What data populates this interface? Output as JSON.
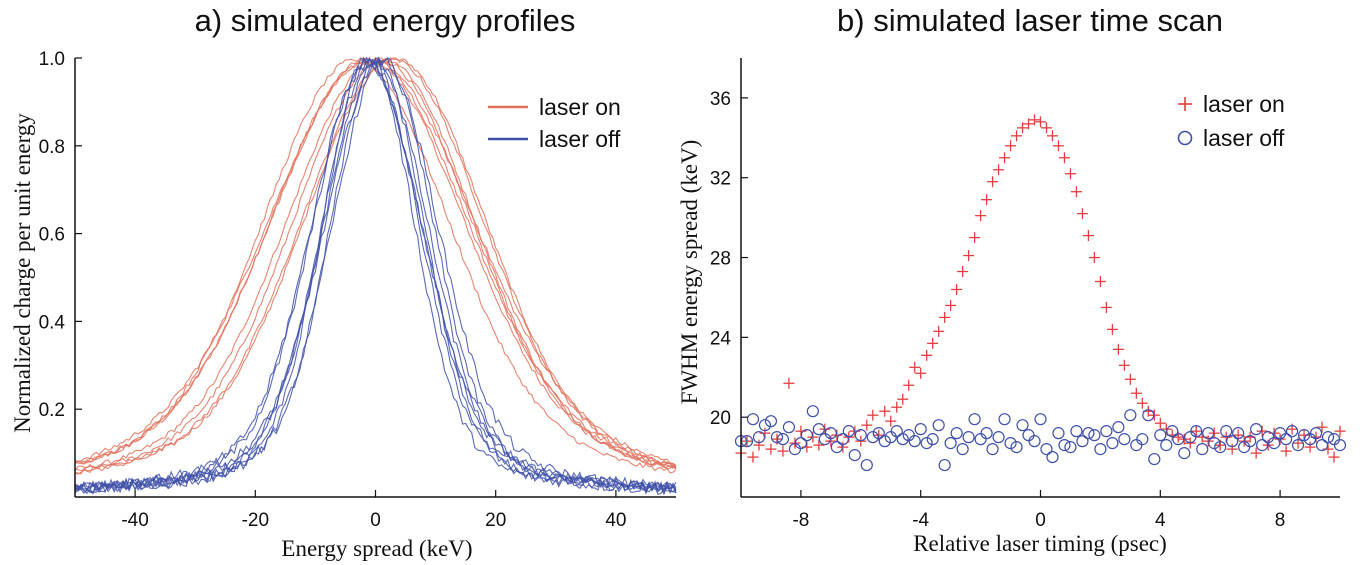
{
  "chart_data": [
    {
      "type": "line",
      "title": "a) simulated energy profiles",
      "xlabel": "Energy spread  (keV)",
      "ylabel": "Normalized charge per unit energy",
      "xlim": [
        -50,
        50
      ],
      "ylim": [
        0,
        1.0
      ],
      "xticks": [
        -40,
        -20,
        0,
        20,
        40
      ],
      "yticks": [
        0.2,
        0.4,
        0.6,
        0.8,
        1.0
      ],
      "ytick_labels": [
        "0.2",
        "0.4",
        "0.6",
        "0.8",
        "1.0"
      ],
      "legend_position": "top-right",
      "series": [
        {
          "name": "laser on",
          "color": "#e0705a",
          "model": "approximately gaussian core with heavy tails, 8 overlaid noisy simulation traces",
          "fwhm": 35,
          "x": [
            -50,
            -40,
            -30,
            -25,
            -20,
            -15,
            -10,
            -5,
            0,
            5,
            10,
            15,
            20,
            25,
            30,
            40,
            50
          ],
          "values": [
            0.04,
            0.07,
            0.12,
            0.17,
            0.29,
            0.52,
            0.79,
            0.97,
            1.0,
            0.97,
            0.79,
            0.52,
            0.29,
            0.17,
            0.12,
            0.07,
            0.04
          ]
        },
        {
          "name": "laser off",
          "color": "#4050a8",
          "model": "narrower peak with heavy tails, 8 overlaid noisy simulation traces",
          "fwhm": 19,
          "x": [
            -50,
            -40,
            -30,
            -20,
            -15,
            -10,
            -5,
            0,
            5,
            10,
            15,
            20,
            30,
            40,
            50
          ],
          "values": [
            0.02,
            0.04,
            0.06,
            0.11,
            0.2,
            0.42,
            0.8,
            1.0,
            0.8,
            0.42,
            0.2,
            0.12,
            0.07,
            0.04,
            0.02
          ]
        }
      ]
    },
    {
      "type": "scatter",
      "title": "b) simulated laser time scan",
      "xlabel": "Relative laser timing  (psec)",
      "ylabel": "FWHM energy spread (keV)",
      "xlim": [
        -10,
        10
      ],
      "ylim": [
        16,
        38
      ],
      "xticks": [
        -8,
        -4,
        0,
        4,
        8
      ],
      "yticks": [
        20,
        24,
        28,
        32,
        36
      ],
      "legend_position": "top-right",
      "series": [
        {
          "name": "laser on",
          "marker": "plus",
          "color": "#e04040",
          "x": [
            -10,
            -9.8,
            -9.6,
            -9.4,
            -9.2,
            -9,
            -8.8,
            -8.6,
            -8.4,
            -8.2,
            -8,
            -7.8,
            -7.6,
            -7.4,
            -7.2,
            -7,
            -6.8,
            -6.6,
            -6.4,
            -6.2,
            -6,
            -5.8,
            -5.6,
            -5.4,
            -5.2,
            -5,
            -4.8,
            -4.6,
            -4.4,
            -4.2,
            -4,
            -3.8,
            -3.6,
            -3.4,
            -3.2,
            -3,
            -2.8,
            -2.6,
            -2.4,
            -2.2,
            -2,
            -1.8,
            -1.6,
            -1.4,
            -1.2,
            -1,
            -0.8,
            -0.6,
            -0.4,
            -0.2,
            0,
            0.2,
            0.4,
            0.6,
            0.8,
            1,
            1.2,
            1.4,
            1.6,
            1.8,
            2,
            2.2,
            2.4,
            2.6,
            2.8,
            3,
            3.2,
            3.4,
            3.6,
            3.8,
            4,
            4.2,
            4.4,
            4.6,
            4.8,
            5,
            5.2,
            5.4,
            5.6,
            5.8,
            6,
            6.2,
            6.4,
            6.6,
            6.8,
            7,
            7.2,
            7.4,
            7.6,
            7.8,
            8,
            8.2,
            8.4,
            8.6,
            8.8,
            9,
            9.2,
            9.4,
            9.6,
            9.8,
            10
          ],
          "values": [
            18.2,
            18.8,
            18.0,
            18.6,
            19.2,
            18.4,
            18.9,
            18.3,
            21.7,
            18.7,
            19.3,
            18.5,
            19.0,
            18.6,
            19.4,
            18.8,
            19.1,
            18.5,
            19.0,
            19.3,
            18.8,
            19.6,
            20.1,
            19.1,
            20.3,
            19.8,
            20.5,
            20.9,
            21.6,
            22.5,
            22.2,
            23.1,
            23.7,
            24.3,
            25.0,
            25.6,
            26.4,
            27.3,
            28.1,
            29.0,
            30.1,
            30.9,
            31.8,
            32.4,
            33.0,
            33.6,
            34.1,
            34.5,
            34.7,
            34.9,
            34.8,
            34.5,
            34.1,
            33.6,
            33.0,
            32.2,
            31.3,
            30.2,
            29.1,
            28.0,
            26.8,
            25.5,
            24.4,
            23.4,
            22.6,
            21.9,
            21.2,
            20.7,
            20.3,
            20.1,
            19.7,
            19.4,
            19.1,
            19.0,
            18.9,
            18.7,
            19.3,
            19.0,
            18.8,
            19.2,
            18.6,
            19.0,
            18.4,
            19.1,
            18.8,
            19.0,
            18.2,
            19.3,
            18.6,
            19.2,
            18.9,
            18.3,
            19.4,
            18.7,
            19.1,
            18.5,
            19.0,
            19.5,
            18.4,
            18.0,
            19.3
          ]
        },
        {
          "name": "laser off",
          "marker": "circle",
          "color": "#4050a8",
          "x": [
            -10,
            -9.8,
            -9.6,
            -9.4,
            -9.2,
            -9,
            -8.8,
            -8.6,
            -8.4,
            -8.2,
            -8,
            -7.8,
            -7.6,
            -7.4,
            -7.2,
            -7,
            -6.8,
            -6.6,
            -6.4,
            -6.2,
            -6,
            -5.8,
            -5.6,
            -5.4,
            -5.2,
            -5,
            -4.8,
            -4.6,
            -4.4,
            -4.2,
            -4,
            -3.8,
            -3.6,
            -3.4,
            -3.2,
            -3,
            -2.8,
            -2.6,
            -2.4,
            -2.2,
            -2,
            -1.8,
            -1.6,
            -1.4,
            -1.2,
            -1,
            -0.8,
            -0.6,
            -0.4,
            -0.2,
            0,
            0.2,
            0.4,
            0.6,
            0.8,
            1,
            1.2,
            1.4,
            1.6,
            1.8,
            2,
            2.2,
            2.4,
            2.6,
            2.8,
            3,
            3.2,
            3.4,
            3.6,
            3.8,
            4,
            4.2,
            4.4,
            4.6,
            4.8,
            5,
            5.2,
            5.4,
            5.6,
            5.8,
            6,
            6.2,
            6.4,
            6.6,
            6.8,
            7,
            7.2,
            7.4,
            7.6,
            7.8,
            8,
            8.2,
            8.4,
            8.6,
            8.8,
            9,
            9.2,
            9.4,
            9.6,
            9.8,
            10
          ],
          "values": [
            18.8,
            18.8,
            19.9,
            19.0,
            19.6,
            19.8,
            19.0,
            18.9,
            19.5,
            18.4,
            18.7,
            19.1,
            20.3,
            19.4,
            18.9,
            19.2,
            18.5,
            18.9,
            19.3,
            18.1,
            19.1,
            17.6,
            19.0,
            19.2,
            18.8,
            19.0,
            19.3,
            18.9,
            19.1,
            18.8,
            19.4,
            18.7,
            18.9,
            19.6,
            17.6,
            18.7,
            19.2,
            18.4,
            19.0,
            19.9,
            18.9,
            19.2,
            18.4,
            19.0,
            19.9,
            18.7,
            18.5,
            19.6,
            19.1,
            18.8,
            19.9,
            18.4,
            18.0,
            19.2,
            18.6,
            18.5,
            19.3,
            18.8,
            19.2,
            19.1,
            18.4,
            19.3,
            18.7,
            19.5,
            18.9,
            20.1,
            18.6,
            18.9,
            20.1,
            17.9,
            19.1,
            18.6,
            19.3,
            18.9,
            18.2,
            19.0,
            19.3,
            18.4,
            19.2,
            18.7,
            18.5,
            19.3,
            18.8,
            19.2,
            18.5,
            18.8,
            19.4,
            18.6,
            19.0,
            18.7,
            19.2,
            18.9,
            19.3,
            18.6,
            19.1,
            18.9,
            19.2,
            18.6,
            19.0,
            18.9,
            18.6
          ]
        }
      ]
    }
  ]
}
